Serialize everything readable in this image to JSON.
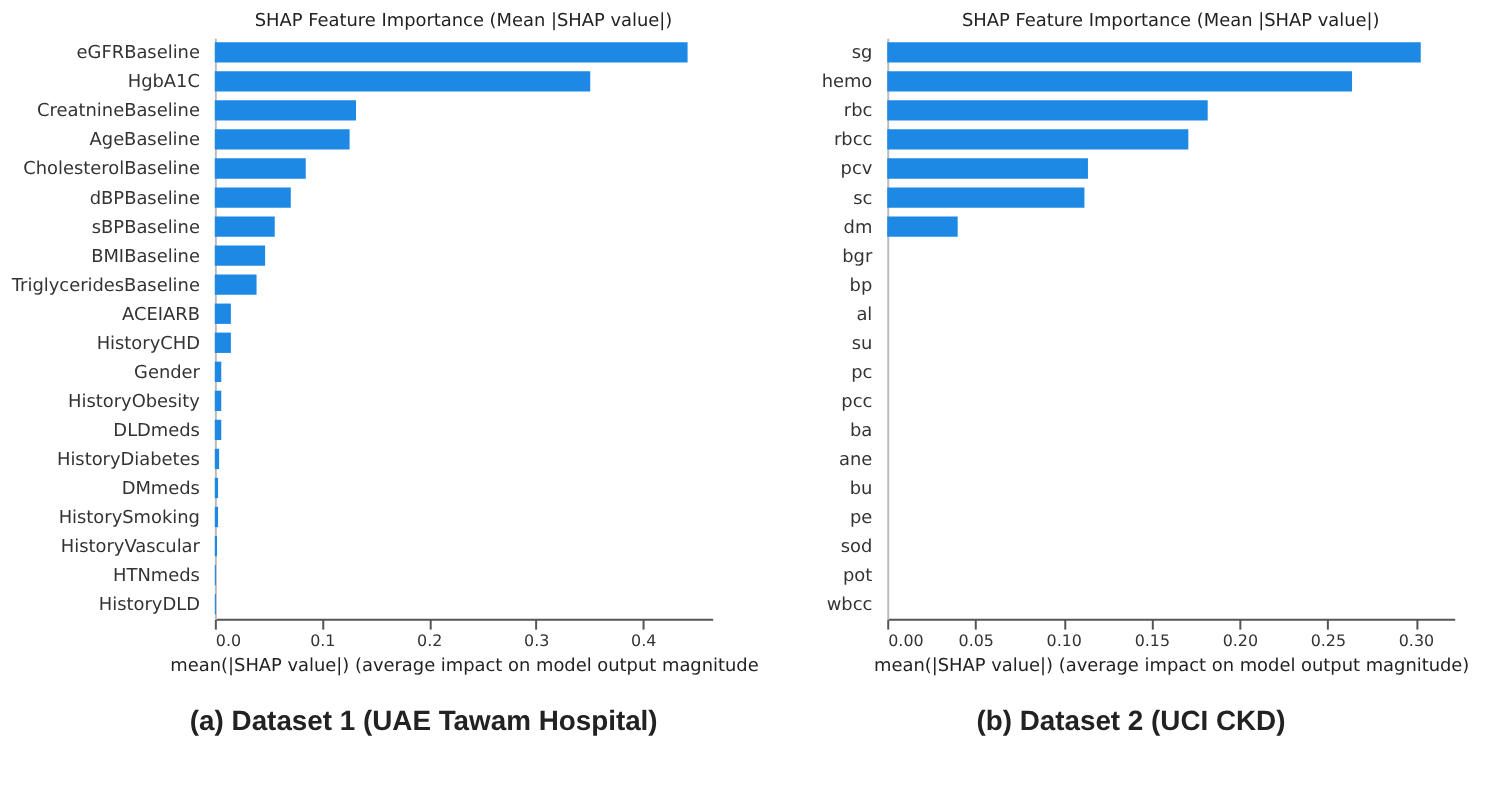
{
  "chart_data": [
    {
      "type": "bar",
      "orientation": "horizontal",
      "title": "SHAP Feature Importance (Mean |SHAP value|)",
      "xlabel": "mean(|SHAP value|) (average impact on model output magnitude",
      "annotations": [
        "(a) Dataset 1 (UAE Tawam Hospital)"
      ],
      "categories": [
        "eGFRBaseline",
        "HgbA1C",
        "CreatnineBaseline",
        "AgeBaseline",
        "CholesterolBaseline",
        "dBPBaseline",
        "sBPBaseline",
        "BMIBaseline",
        "TriglyceridesBaseline",
        "ACEIARB",
        "HistoryCHD",
        "Gender",
        "HistoryObesity",
        "DLDmeds",
        "HistoryDiabetes",
        "DMmeds",
        "HistorySmoking",
        "HistoryVascular",
        "HTNmeds",
        "HistoryDLD"
      ],
      "values": [
        0.442,
        0.351,
        0.132,
        0.126,
        0.085,
        0.071,
        0.056,
        0.047,
        0.039,
        0.015,
        0.015,
        0.006,
        0.006,
        0.006,
        0.004,
        0.003,
        0.003,
        0.002,
        0.001,
        0.001
      ],
      "color": "#1e88e5",
      "xlim": [
        0,
        0.465
      ],
      "xticks": [
        {
          "value": 0,
          "label": "0.0"
        },
        0.1,
        0.2,
        0.3,
        0.4
      ],
      "grid": false
    },
    {
      "type": "bar",
      "orientation": "horizontal",
      "title": "SHAP Feature Importance (Mean |SHAP value|)",
      "xlabel": "mean(|SHAP value|) (average impact on model output magnitude)",
      "annotations": [
        "(b) Dataset 2 (UCI CKD)"
      ],
      "categories": [
        "sg",
        "hemo",
        "rbc",
        "rbcc",
        "pcv",
        "sc",
        "dm",
        "bgr",
        "bp",
        "al",
        "su",
        "pc",
        "pcc",
        "ba",
        "ane",
        "bu",
        "pe",
        "sod",
        "pot",
        "wbcc"
      ],
      "values": [
        0.303,
        0.264,
        0.182,
        0.171,
        0.114,
        0.112,
        0.04,
        0,
        0,
        0,
        0,
        0,
        0,
        0,
        0,
        0,
        0,
        0,
        0,
        0
      ],
      "color": "#1e88e5",
      "xlim": [
        0,
        0.322
      ],
      "xticks": [
        {
          "value": 0,
          "label": "0.00"
        },
        {
          "value": 0.05,
          "label": "0.05"
        },
        {
          "value": 0.1,
          "label": "0.10"
        },
        {
          "value": 0.15,
          "label": "0.15"
        },
        {
          "value": 0.2,
          "label": "0.20"
        },
        {
          "value": 0.25,
          "label": "0.25"
        },
        {
          "value": 0.3,
          "label": "0.30"
        }
      ],
      "grid": false
    }
  ]
}
